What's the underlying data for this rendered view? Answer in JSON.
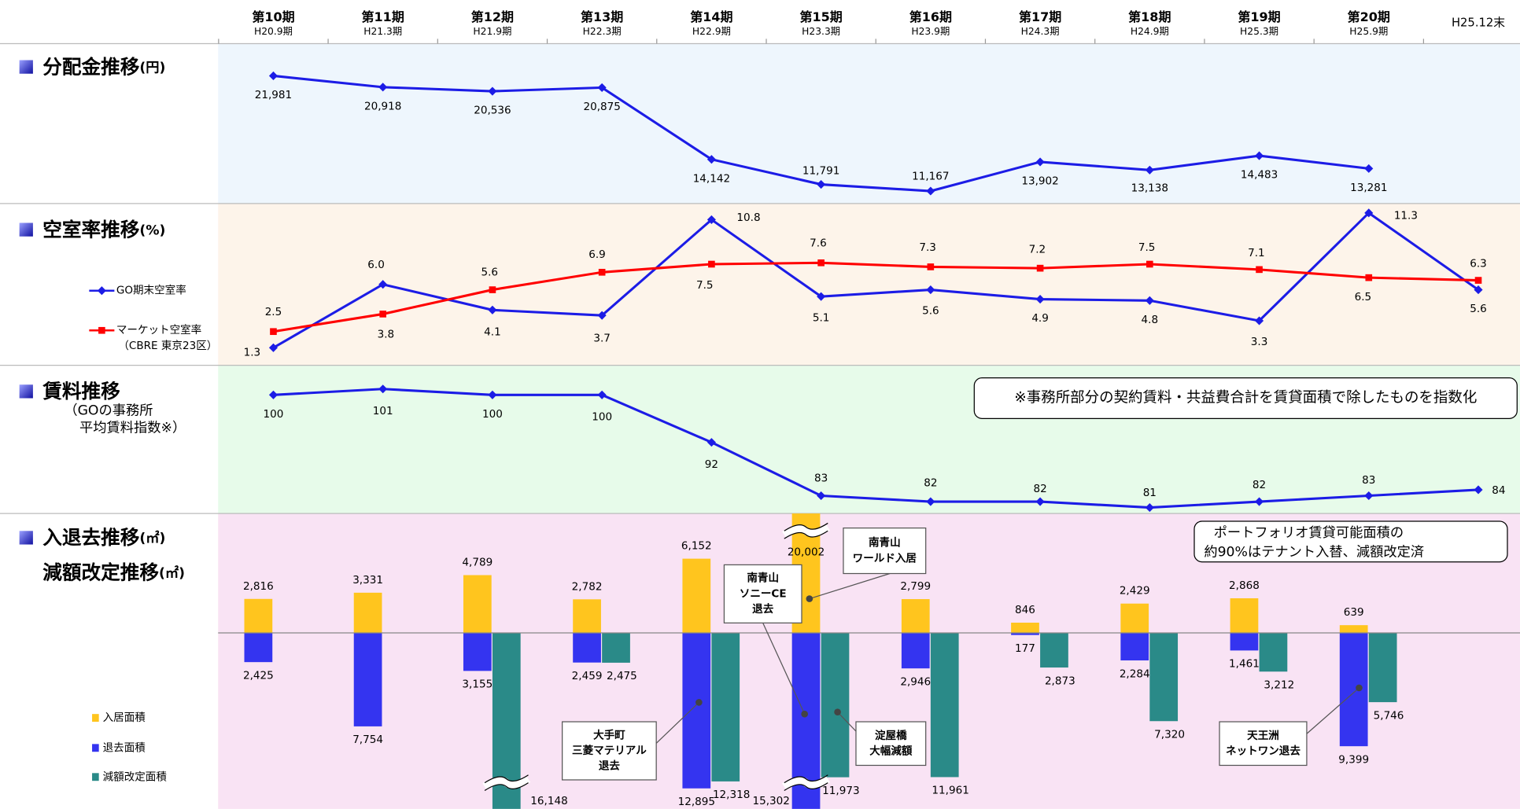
{
  "columns": [
    {
      "period": "第10期",
      "date": "H20.9期"
    },
    {
      "period": "第11期",
      "date": "H21.3期"
    },
    {
      "period": "第12期",
      "date": "H21.9期"
    },
    {
      "period": "第13期",
      "date": "H22.3期"
    },
    {
      "period": "第14期",
      "date": "H22.9期"
    },
    {
      "period": "第15期",
      "date": "H23.3期"
    },
    {
      "period": "第16期",
      "date": "H23.9期"
    },
    {
      "period": "第17期",
      "date": "H24.3期"
    },
    {
      "period": "第18期",
      "date": "H24.9期"
    },
    {
      "period": "第19期",
      "date": "H25.3期"
    },
    {
      "period": "第20期",
      "date": "H25.9期"
    },
    {
      "date": "H25.12末"
    }
  ],
  "chart_data": [
    {
      "type": "line",
      "title": "分配金推移",
      "unit": "(円)",
      "ylim": [
        10000,
        25000
      ],
      "color": "#1c1ce6",
      "values": [
        21981,
        20918,
        20536,
        20875,
        14142,
        11791,
        11167,
        13902,
        13138,
        14483,
        13281,
        null
      ],
      "value_labels": [
        "21,981",
        "20,918",
        "20,536",
        "20,875",
        "14,142",
        "11,791",
        "11,167",
        "13,902",
        "13,138",
        "14,483",
        "13,281",
        null
      ]
    },
    {
      "type": "line",
      "title": "空室率推移",
      "unit": "(%)",
      "ylim": [
        0,
        12
      ],
      "series": [
        {
          "name": "GO期末空室率",
          "color": "#1c1ce6",
          "marker": "diamond",
          "values": [
            1.3,
            6.0,
            4.1,
            3.7,
            10.8,
            5.1,
            5.6,
            4.9,
            4.8,
            3.3,
            11.3,
            5.6
          ],
          "value_labels": [
            "1.3",
            "6.0",
            "4.1",
            "3.7",
            "10.8",
            "5.1",
            "5.6",
            "4.9",
            "4.8",
            "3.3",
            "11.3",
            "5.6"
          ]
        },
        {
          "name": "マーケット空室率",
          "note": "（CBRE 東京23区）",
          "color": "#ff0000",
          "marker": "square",
          "values": [
            2.5,
            3.8,
            5.6,
            6.9,
            7.5,
            7.6,
            7.3,
            7.2,
            7.5,
            7.1,
            6.5,
            6.3
          ],
          "value_labels": [
            "2.5",
            "3.8",
            "5.6",
            "6.9",
            "7.5",
            "7.6",
            "7.3",
            "7.2",
            "7.5",
            "7.1",
            "6.5",
            "6.3"
          ]
        }
      ]
    },
    {
      "type": "line",
      "title": "賃料推移",
      "subtitle": [
        "（GOの事務所",
        "平均賃料指数※）"
      ],
      "note": "※事務所部分の契約賃料・共益費合計を賃貸面積で除したものを指数化",
      "ylim": [
        80,
        105
      ],
      "color": "#1c1ce6",
      "values": [
        100,
        101,
        100,
        100,
        92,
        83,
        82,
        82,
        81,
        82,
        83,
        84
      ]
    },
    {
      "type": "bar",
      "titles": [
        {
          "text": "入退去推移",
          "unit": "(㎡)"
        },
        {
          "text": "減額改定推移",
          "unit": "(㎡)"
        }
      ],
      "ylim": [
        -14600,
        9900
      ],
      "series": [
        {
          "name": "入居面積",
          "color": "#ffc51e",
          "values": [
            2816,
            3331,
            4789,
            2782,
            6152,
            20002,
            2799,
            846,
            2429,
            2868,
            639,
            null
          ],
          "value_labels": [
            "2,816",
            "3,331",
            "4,789",
            "2,782",
            "6,152",
            "20,002",
            "2,799",
            "846",
            "2,429",
            "2,868",
            "639",
            null
          ]
        },
        {
          "name": "退去面積",
          "color": "#3434f0",
          "values": [
            -2425,
            -7754,
            -3155,
            -2459,
            -12895,
            -15302,
            -2946,
            -177,
            -2284,
            -1461,
            -9399,
            null
          ],
          "value_labels": [
            "2,425",
            "7,754",
            "3,155",
            "2,459",
            "12,895",
            "15,302",
            "2,946",
            "177",
            "2,284",
            "1,461",
            "9,399",
            null
          ]
        },
        {
          "name": "減額改定面積",
          "color": "#2a8a88",
          "values": [
            null,
            null,
            -16148,
            -2475,
            -12318,
            -11973,
            -11961,
            -2873,
            -7320,
            -3212,
            -5746,
            null
          ],
          "value_labels": [
            null,
            null,
            "16,148",
            "2,475",
            "12,318",
            "11,973",
            "11,961",
            "2,873",
            "7,320",
            "3,212",
            "5,746",
            null
          ]
        }
      ],
      "annotations": [
        {
          "lines": [
            "南青山",
            "ワールド入居"
          ]
        },
        {
          "lines": [
            "南青山",
            "ソニーCE",
            "退去"
          ]
        },
        {
          "lines": [
            "大手町",
            "三菱マテリアル",
            "退去"
          ]
        },
        {
          "lines": [
            "淀屋橋",
            "大幅減額"
          ]
        },
        {
          "lines": [
            "天王洲",
            "ネットワン退去"
          ]
        }
      ],
      "note": {
        "lines": [
          "ポートフォリオ賃貸可能面積の",
          "約90%はテナント入替、減額改定済"
        ]
      }
    }
  ]
}
